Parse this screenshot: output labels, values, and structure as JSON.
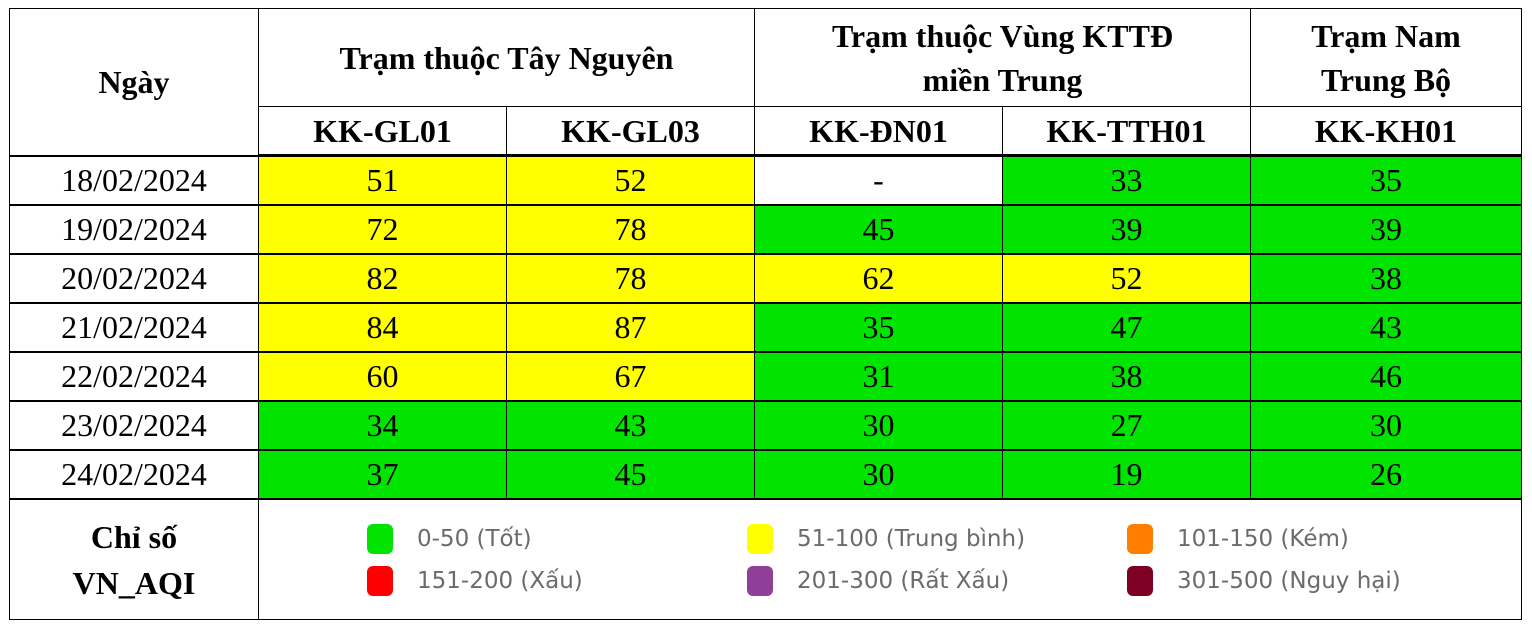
{
  "table": {
    "date_header": "Ngày",
    "groups": [
      {
        "label": "Trạm thuộc Tây Nguyên",
        "span": 2
      },
      {
        "label_line1": "Trạm thuộc Vùng KTTĐ",
        "label_line2": "miền Trung",
        "span": 2
      },
      {
        "label_line1": "Trạm Nam",
        "label_line2": "Trung Bộ",
        "span": 1
      }
    ],
    "stations": [
      "KK-GL01",
      "KK-GL03",
      "KK-ĐN01",
      "KK-TTH01",
      "KK-KH01"
    ],
    "rows": [
      {
        "date": "18/02/2024",
        "values": [
          "51",
          "52",
          "-",
          "33",
          "35"
        ],
        "levels": [
          "yellow",
          "yellow",
          "white",
          "green",
          "green"
        ]
      },
      {
        "date": "19/02/2024",
        "values": [
          "72",
          "78",
          "45",
          "39",
          "39"
        ],
        "levels": [
          "yellow",
          "yellow",
          "green",
          "green",
          "green"
        ]
      },
      {
        "date": "20/02/2024",
        "values": [
          "82",
          "78",
          "62",
          "52",
          "38"
        ],
        "levels": [
          "yellow",
          "yellow",
          "yellow",
          "yellow",
          "green"
        ]
      },
      {
        "date": "21/02/2024",
        "values": [
          "84",
          "87",
          "35",
          "47",
          "43"
        ],
        "levels": [
          "yellow",
          "yellow",
          "green",
          "green",
          "green"
        ]
      },
      {
        "date": "22/02/2024",
        "values": [
          "60",
          "67",
          "31",
          "38",
          "46"
        ],
        "levels": [
          "yellow",
          "yellow",
          "green",
          "green",
          "green"
        ]
      },
      {
        "date": "23/02/2024",
        "values": [
          "34",
          "43",
          "30",
          "27",
          "30"
        ],
        "levels": [
          "green",
          "green",
          "green",
          "green",
          "green"
        ]
      },
      {
        "date": "24/02/2024",
        "values": [
          "37",
          "45",
          "30",
          "19",
          "26"
        ],
        "levels": [
          "green",
          "green",
          "green",
          "green",
          "green"
        ]
      }
    ]
  },
  "legend": {
    "label_line1": "Chỉ số",
    "label_line2": "VN_AQI",
    "items": [
      {
        "range": "0-50 (Tốt)",
        "color": "#00e400"
      },
      {
        "range": "51-100 (Trung bình)",
        "color": "#ffff00"
      },
      {
        "range": "101-150 (Kém)",
        "color": "#ff7e00"
      },
      {
        "range": "151-200 (Xấu)",
        "color": "#ff0000"
      },
      {
        "range": "201-300 (Rất Xấu)",
        "color": "#8f3f97"
      },
      {
        "range": "301-500 (Nguy hại)",
        "color": "#7e0023"
      }
    ]
  },
  "colors": {
    "yellow": "#ffff00",
    "green": "#00e400",
    "white": "#ffffff",
    "border": "#000000"
  }
}
